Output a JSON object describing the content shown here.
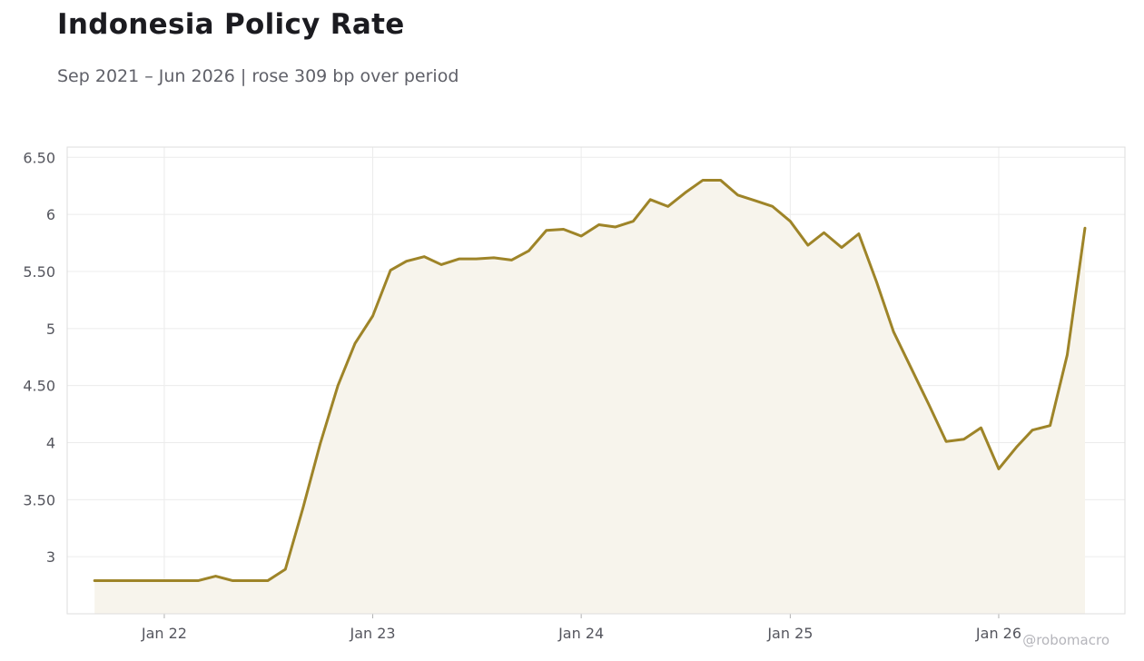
{
  "header": {
    "title": "Indonesia Policy Rate",
    "subtitle": "Sep 2021 – Jun 2026 | rose 309 bp over period"
  },
  "watermark": "@robomacro",
  "colors": {
    "line": "#9e8428",
    "fill": "#f7f4ec",
    "grid": "#ececec",
    "frame": "#dddddd"
  },
  "chart_data": {
    "type": "area",
    "title": "Indonesia Policy Rate",
    "subtitle": "Sep 2021 – Jun 2026 | rose 309 bp over period",
    "xlabel": "",
    "ylabel": "",
    "grid": true,
    "legend": "none",
    "xlim": [
      "2021-07-15",
      "2026-08-10"
    ],
    "ylim": [
      2.5,
      6.59
    ],
    "x_ticks": [
      {
        "date": "2022-01-01",
        "label": "Jan 22"
      },
      {
        "date": "2023-01-01",
        "label": "Jan 23"
      },
      {
        "date": "2024-01-01",
        "label": "Jan 24"
      },
      {
        "date": "2025-01-01",
        "label": "Jan 25"
      },
      {
        "date": "2026-01-01",
        "label": "Jan 26"
      }
    ],
    "y_ticks": [
      {
        "value": 3.0,
        "label": "3"
      },
      {
        "value": 3.5,
        "label": "3.50"
      },
      {
        "value": 4.0,
        "label": "4"
      },
      {
        "value": 4.5,
        "label": "4.50"
      },
      {
        "value": 5.0,
        "label": "5"
      },
      {
        "value": 5.5,
        "label": "5.50"
      },
      {
        "value": 6.0,
        "label": "6"
      },
      {
        "value": 6.5,
        "label": "6.50"
      }
    ],
    "series": [
      {
        "x": [
          "2021-09-01",
          "2021-10-01",
          "2021-11-01",
          "2021-12-01",
          "2022-01-01",
          "2022-02-01",
          "2022-03-01",
          "2022-04-01",
          "2022-05-01",
          "2022-06-01",
          "2022-07-01",
          "2022-08-01",
          "2022-09-01",
          "2022-10-01",
          "2022-11-01",
          "2022-12-01",
          "2023-01-01",
          "2023-02-01",
          "2023-03-01",
          "2023-04-01",
          "2023-05-01",
          "2023-06-01",
          "2023-07-01",
          "2023-08-01",
          "2023-09-01",
          "2023-10-01",
          "2023-11-01",
          "2023-12-01",
          "2024-01-01",
          "2024-02-01",
          "2024-03-01",
          "2024-04-01",
          "2024-05-01",
          "2024-06-01",
          "2024-07-01",
          "2024-08-01",
          "2024-09-01",
          "2024-10-01",
          "2024-11-01",
          "2024-12-01",
          "2025-01-01",
          "2025-02-01",
          "2025-03-01",
          "2025-04-01",
          "2025-05-01",
          "2025-06-01",
          "2025-07-01",
          "2025-08-01",
          "2025-09-01",
          "2025-10-01",
          "2025-11-01",
          "2025-12-01",
          "2026-01-01",
          "2026-02-01",
          "2026-03-01",
          "2026-04-01",
          "2026-05-01",
          "2026-06-01"
        ],
        "values": [
          2.79,
          2.79,
          2.79,
          2.79,
          2.79,
          2.79,
          2.79,
          2.83,
          2.79,
          2.79,
          2.79,
          2.89,
          3.43,
          3.99,
          4.5,
          4.87,
          5.11,
          5.51,
          5.59,
          5.63,
          5.56,
          5.61,
          5.61,
          5.62,
          5.6,
          5.68,
          5.86,
          5.87,
          5.81,
          5.91,
          5.89,
          5.94,
          6.13,
          6.07,
          6.19,
          6.3,
          6.3,
          6.17,
          6.12,
          6.07,
          5.94,
          5.73,
          5.84,
          5.71,
          5.83,
          5.41,
          4.97,
          4.65,
          4.33,
          4.01,
          4.03,
          4.13,
          3.77,
          3.96,
          4.11,
          4.15,
          4.77,
          5.88
        ]
      }
    ]
  }
}
